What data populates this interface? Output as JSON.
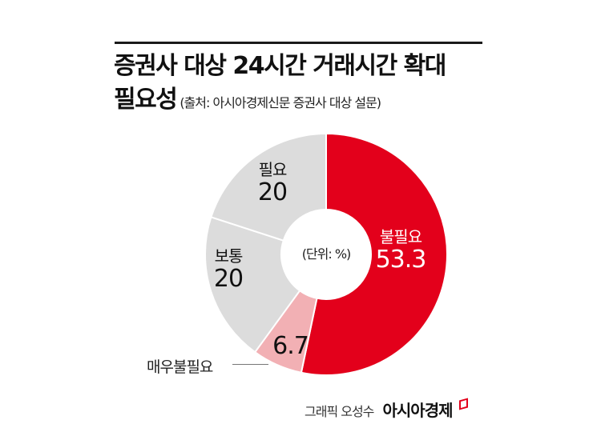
{
  "header": {
    "title_line1": "증권사 대상 24시간 거래시간 확대",
    "title_line2": "필요성",
    "source": "(출처: 아시아경제신문 증권사 대상 설문)"
  },
  "center_label": "(단위: %)",
  "footer": {
    "credit": "그래픽 오성수",
    "brand": "아시아경제"
  },
  "colors": {
    "red": "#e3001b",
    "pink": "#f2b0b4",
    "gray": "#dcdcdc",
    "separator": "#ffffff"
  },
  "chart_data": {
    "type": "pie",
    "donut": true,
    "title": "증권사 대상 24시간 거래시간 확대 필요성",
    "subtitle": "(출처: 아시아경제신문 증권사 대상 설문)",
    "unit": "%",
    "unit_label": "(단위: %)",
    "categories": [
      "불필요",
      "매우불필요",
      "보통",
      "필요"
    ],
    "values": [
      53.3,
      6.7,
      20,
      20
    ],
    "slice_colors": [
      "#e3001b",
      "#f2b0b4",
      "#dcdcdc",
      "#dcdcdc"
    ],
    "start_angle_deg": 0,
    "direction": "clockwise",
    "labels": [
      {
        "name": "불필요",
        "value": "53.3"
      },
      {
        "name": "매우불필요",
        "value": "6.7"
      },
      {
        "name": "보통",
        "value": "20"
      },
      {
        "name": "필요",
        "value": "20"
      }
    ],
    "legend": "none (inline labels)"
  }
}
